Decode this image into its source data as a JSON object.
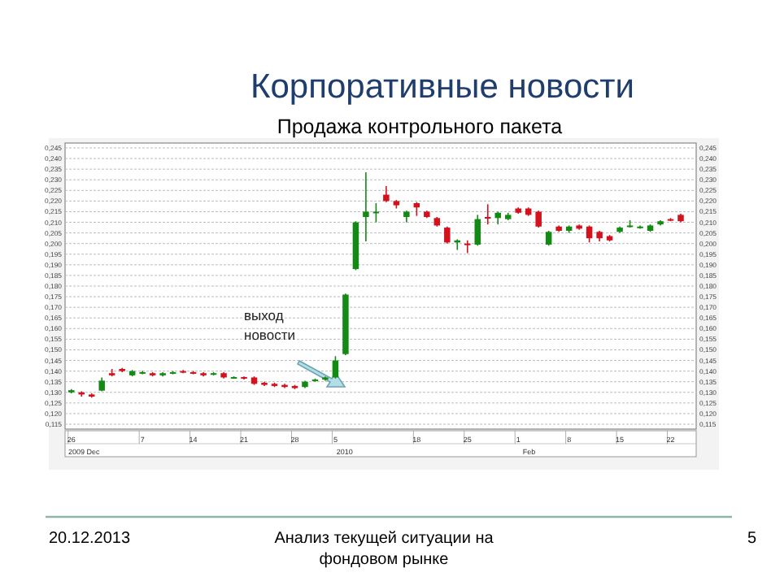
{
  "chart_data": {
    "type": "candlestick",
    "title": "Корпоративные новости",
    "subtitle": "Продажа контрольного пакета",
    "categories": [
      "26",
      null,
      null,
      null,
      null,
      null,
      null,
      "7",
      null,
      null,
      null,
      null,
      "14",
      null,
      null,
      null,
      null,
      "21",
      null,
      null,
      null,
      null,
      "28",
      null,
      null,
      null,
      "5",
      null,
      null,
      null,
      null,
      null,
      null,
      null,
      "18",
      null,
      null,
      null,
      null,
      "25",
      null,
      null,
      null,
      null,
      "1",
      null,
      null,
      null,
      null,
      "8",
      null,
      null,
      null,
      null,
      "15",
      null,
      null,
      null,
      null,
      "22",
      null
    ],
    "ohlc": [
      [
        0.13,
        0.1315,
        0.1295,
        0.131
      ],
      [
        0.13,
        0.1305,
        0.128,
        0.129
      ],
      [
        0.129,
        0.1295,
        0.1275,
        0.128
      ],
      [
        0.1308,
        0.137,
        0.1305,
        0.1355
      ],
      [
        0.139,
        0.141,
        0.1375,
        0.138
      ],
      [
        0.141,
        0.1415,
        0.1395,
        0.14
      ],
      [
        0.138,
        0.1405,
        0.1375,
        0.14
      ],
      [
        0.139,
        0.14,
        0.1385,
        0.1395
      ],
      [
        0.139,
        0.1395,
        0.1375,
        0.138
      ],
      [
        0.138,
        0.1395,
        0.1375,
        0.139
      ],
      [
        0.139,
        0.14,
        0.1385,
        0.1395
      ],
      [
        0.14,
        0.1405,
        0.139,
        0.1395
      ],
      [
        0.1395,
        0.14,
        0.1385,
        0.139
      ],
      [
        0.139,
        0.1395,
        0.1375,
        0.138
      ],
      [
        0.1385,
        0.1395,
        0.138,
        0.139
      ],
      [
        0.139,
        0.1395,
        0.1365,
        0.137
      ],
      [
        0.137,
        0.1375,
        0.1365,
        0.1372
      ],
      [
        0.1372,
        0.1375,
        0.136,
        0.1365
      ],
      [
        0.137,
        0.1375,
        0.1335,
        0.134
      ],
      [
        0.1345,
        0.135,
        0.133,
        0.1335
      ],
      [
        0.134,
        0.1345,
        0.1325,
        0.133
      ],
      [
        0.1335,
        0.134,
        0.132,
        0.1325
      ],
      [
        0.133,
        0.1335,
        0.1315,
        0.132
      ],
      [
        0.1325,
        0.1355,
        0.132,
        0.135
      ],
      [
        0.1355,
        0.1365,
        0.135,
        0.136
      ],
      [
        0.136,
        0.1375,
        0.1355,
        0.137
      ],
      [
        0.137,
        0.147,
        0.1365,
        0.145
      ],
      [
        0.148,
        0.1765,
        0.1475,
        0.176
      ],
      [
        0.188,
        0.2105,
        0.1875,
        0.21
      ],
      [
        0.2125,
        0.2335,
        0.201,
        0.215
      ],
      [
        0.2148,
        0.219,
        0.21,
        0.215
      ],
      [
        0.223,
        0.227,
        0.2195,
        0.22
      ],
      [
        0.22,
        0.2205,
        0.2165,
        0.218
      ],
      [
        0.2125,
        0.2155,
        0.21,
        0.215
      ],
      [
        0.219,
        0.2195,
        0.213,
        0.217
      ],
      [
        0.215,
        0.2155,
        0.212,
        0.2125
      ],
      [
        0.212,
        0.2125,
        0.208,
        0.2085
      ],
      [
        0.2075,
        0.208,
        0.2,
        0.2005
      ],
      [
        0.2005,
        0.202,
        0.197,
        0.2015
      ],
      [
        0.2,
        0.2015,
        0.1955,
        0.1995
      ],
      [
        0.1995,
        0.2135,
        0.199,
        0.2115
      ],
      [
        0.2125,
        0.2185,
        0.209,
        0.212
      ],
      [
        0.212,
        0.215,
        0.209,
        0.2145
      ],
      [
        0.2115,
        0.2145,
        0.211,
        0.2135
      ],
      [
        0.2165,
        0.217,
        0.214,
        0.2145
      ],
      [
        0.2165,
        0.217,
        0.213,
        0.2135
      ],
      [
        0.215,
        0.2155,
        0.2075,
        0.208
      ],
      [
        0.1995,
        0.206,
        0.199,
        0.2055
      ],
      [
        0.208,
        0.2085,
        0.2055,
        0.206
      ],
      [
        0.206,
        0.2085,
        0.205,
        0.208
      ],
      [
        0.2085,
        0.209,
        0.2065,
        0.207
      ],
      [
        0.208,
        0.2085,
        0.2005,
        0.2025
      ],
      [
        0.2055,
        0.206,
        0.201,
        0.2025
      ],
      [
        0.2035,
        0.204,
        0.201,
        0.2015
      ],
      [
        0.2055,
        0.208,
        0.205,
        0.2075
      ],
      [
        0.208,
        0.211,
        0.2075,
        0.2085
      ],
      [
        0.2075,
        0.2085,
        0.207,
        0.208
      ],
      [
        0.206,
        0.209,
        0.2055,
        0.2085
      ],
      [
        0.209,
        0.211,
        0.2085,
        0.2105
      ],
      [
        0.2115,
        0.212,
        0.2105,
        0.211
      ],
      [
        0.2135,
        0.214,
        0.21,
        0.2105
      ]
    ],
    "colors": [
      "#138a13",
      "#d4121e",
      "#d4121e",
      "#138a13",
      "#d4121e",
      "#d4121e",
      "#138a13",
      "#138a13",
      "#d4121e",
      "#138a13",
      "#138a13",
      "#d4121e",
      "#d4121e",
      "#d4121e",
      "#138a13",
      "#d4121e",
      "#138a13",
      "#d4121e",
      "#d4121e",
      "#d4121e",
      "#d4121e",
      "#d4121e",
      "#d4121e",
      "#138a13",
      "#138a13",
      "#138a13",
      "#138a13",
      "#138a13",
      "#138a13",
      "#138a13",
      "#138a13",
      "#d4121e",
      "#d4121e",
      "#138a13",
      "#d4121e",
      "#d4121e",
      "#d4121e",
      "#d4121e",
      "#138a13",
      "#d4121e",
      "#138a13",
      "#d4121e",
      "#138a13",
      "#138a13",
      "#d4121e",
      "#d4121e",
      "#d4121e",
      "#138a13",
      "#d4121e",
      "#138a13",
      "#d4121e",
      "#d4121e",
      "#d4121e",
      "#d4121e",
      "#138a13",
      "#138a13",
      "#138a13",
      "#138a13",
      "#138a13",
      "#d4121e",
      "#d4121e"
    ],
    "ylim": [
      0.115,
      0.245
    ],
    "yticks": [
      {
        "value": 0.115,
        "label": "0,115"
      },
      {
        "value": 0.12,
        "label": "0,120"
      },
      {
        "value": 0.125,
        "label": "0,125"
      },
      {
        "value": 0.13,
        "label": "0,130"
      },
      {
        "value": 0.135,
        "label": "0,135"
      },
      {
        "value": 0.14,
        "label": "0,140"
      },
      {
        "value": 0.145,
        "label": "0,145"
      },
      {
        "value": 0.15,
        "label": "0,150"
      },
      {
        "value": 0.155,
        "label": "0,155"
      },
      {
        "value": 0.16,
        "label": "0,160"
      },
      {
        "value": 0.165,
        "label": "0,165"
      },
      {
        "value": 0.17,
        "label": "0,170"
      },
      {
        "value": 0.175,
        "label": "0,175"
      },
      {
        "value": 0.18,
        "label": "0,180"
      },
      {
        "value": 0.185,
        "label": "0,185"
      },
      {
        "value": 0.19,
        "label": "0,190"
      },
      {
        "value": 0.195,
        "label": "0,195"
      },
      {
        "value": 0.2,
        "label": "0,200"
      },
      {
        "value": 0.205,
        "label": "0,205"
      },
      {
        "value": 0.21,
        "label": "0,210"
      },
      {
        "value": 0.215,
        "label": "0,215"
      },
      {
        "value": 0.22,
        "label": "0,220"
      },
      {
        "value": 0.225,
        "label": "0,225"
      },
      {
        "value": 0.23,
        "label": "0,230"
      },
      {
        "value": 0.235,
        "label": "0,235"
      },
      {
        "value": 0.24,
        "label": "0,240"
      },
      {
        "value": 0.245,
        "label": "0,245"
      }
    ],
    "y2lim": [
      0.115,
      0.245
    ],
    "y2ticks": [
      {
        "value": 0.115,
        "label": "0,115"
      },
      {
        "value": 0.12,
        "label": "0,120"
      },
      {
        "value": 0.125,
        "label": "0,125"
      },
      {
        "value": 0.13,
        "label": "0,130"
      },
      {
        "value": 0.135,
        "label": "0,135"
      },
      {
        "value": 0.14,
        "label": "0,140"
      },
      {
        "value": 0.145,
        "label": "0,145"
      },
      {
        "value": 0.15,
        "label": "0,150"
      },
      {
        "value": 0.155,
        "label": "0,155"
      },
      {
        "value": 0.16,
        "label": "0,160"
      },
      {
        "value": 0.165,
        "label": "0,165"
      },
      {
        "value": 0.17,
        "label": "0,170"
      },
      {
        "value": 0.175,
        "label": "0,175"
      },
      {
        "value": 0.18,
        "label": "0,180"
      },
      {
        "value": 0.185,
        "label": "0,185"
      },
      {
        "value": 0.19,
        "label": "0,190"
      },
      {
        "value": 0.195,
        "label": "0,195"
      },
      {
        "value": 0.2,
        "label": "0,200"
      },
      {
        "value": 0.205,
        "label": "0,205"
      },
      {
        "value": 0.21,
        "label": "0,210"
      },
      {
        "value": 0.215,
        "label": "0,215"
      },
      {
        "value": 0.22,
        "label": "0,220"
      },
      {
        "value": 0.225,
        "label": "0,225"
      },
      {
        "value": 0.23,
        "label": "0,230"
      },
      {
        "value": 0.235,
        "label": "0,235"
      },
      {
        "value": 0.24,
        "label": "0,240"
      },
      {
        "value": 0.245,
        "label": "0,245"
      }
    ],
    "grid": "y",
    "annotations": [
      "выход новости",
      "2009 Dec",
      "2010",
      "Feb",
      "20.12.2013",
      "Анализ текущей ситуации на фондовом рынке",
      "5"
    ]
  }
}
